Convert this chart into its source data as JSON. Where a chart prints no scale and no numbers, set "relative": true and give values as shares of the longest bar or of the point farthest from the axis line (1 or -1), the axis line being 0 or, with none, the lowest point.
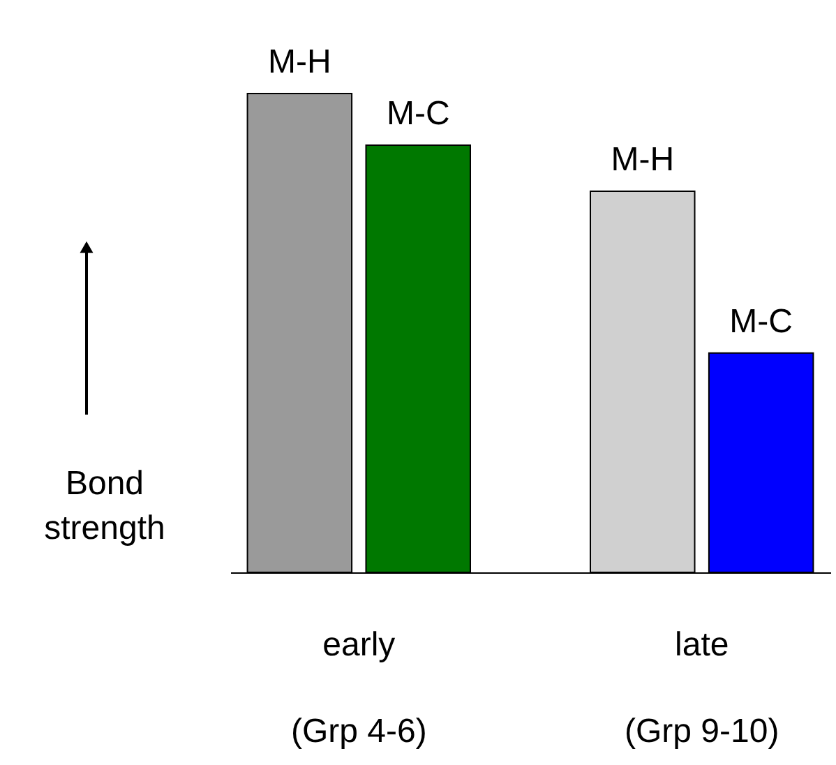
{
  "chart_data": {
    "type": "bar",
    "relative": true,
    "ylabel": "Bond\nstrength",
    "categories": [
      "early\n(Grp 4-6)",
      "late\n(Grp 9-10)"
    ],
    "series": [
      {
        "name": "M-H",
        "colors": [
          "#9a9a9a",
          "#d0d0d0"
        ],
        "values": [
          1,
          0.796
        ]
      },
      {
        "name": "M-C",
        "colors": [
          "#007800",
          "#0000ff"
        ],
        "values": [
          0.892,
          0.458
        ]
      }
    ]
  }
}
